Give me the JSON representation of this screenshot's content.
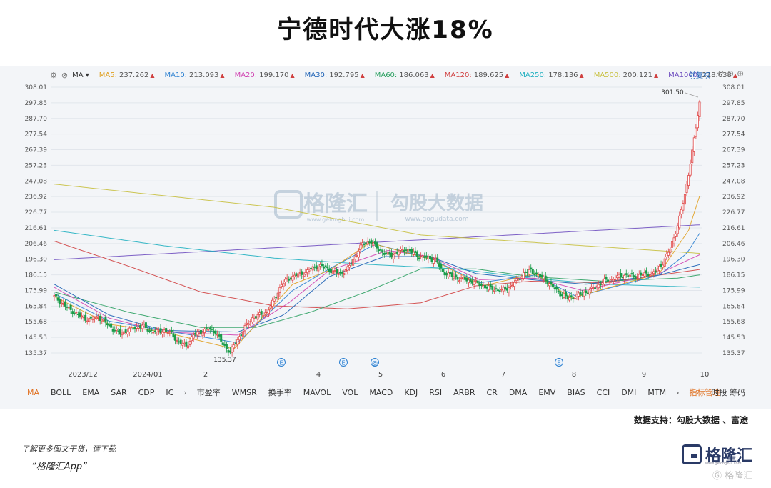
{
  "title": "宁德时代大涨18%",
  "ma_bar": {
    "selector": "MA",
    "items": [
      {
        "label": "MA5:",
        "value": "237.262",
        "color": "#e0a020"
      },
      {
        "label": "MA10:",
        "value": "213.093",
        "color": "#2a7fd0"
      },
      {
        "label": "MA20:",
        "value": "199.170",
        "color": "#d040b0"
      },
      {
        "label": "MA30:",
        "value": "192.795",
        "color": "#1a5fb4"
      },
      {
        "label": "MA60:",
        "value": "186.063",
        "color": "#2aa060"
      },
      {
        "label": "MA120:",
        "value": "189.625",
        "color": "#d04040"
      },
      {
        "label": "MA250:",
        "value": "178.136",
        "color": "#20b0c0"
      },
      {
        "label": "MA500:",
        "value": "200.121",
        "color": "#c8c040"
      },
      {
        "label": "MA1000:",
        "value": "218.638",
        "color": "#7050c0"
      }
    ],
    "fq": "前复权"
  },
  "watermark": {
    "brand": "格隆汇",
    "brand_url": "www.gelonghui.com",
    "partner": "勾股大数据",
    "partner_url": "www.gogudata.com"
  },
  "tabs": [
    "MA",
    "BOLL",
    "EMA",
    "SAR",
    "CDP",
    "IC",
    "市盈率",
    "WMSR",
    "换手率",
    "MAVOL",
    "VOL",
    "MACD",
    "KDJ",
    "RSI",
    "ARBR",
    "CR",
    "DMA",
    "EMV",
    "BIAS",
    "CCI",
    "DMI",
    "MTM",
    "指标管理"
  ],
  "tabs_right": "时段 筹码",
  "credit": "数据支持：勾股大数据 、富途",
  "footer": {
    "line1": "了解更多图文干货，请下载",
    "line2": "“格隆汇App”",
    "logo": "格隆汇",
    "logo_url": "www.gelonghui.com",
    "bottom_mark": "格隆汇"
  },
  "chart_data": {
    "type": "candlestick",
    "y_ticks": [
      308.01,
      297.85,
      287.7,
      277.54,
      267.39,
      257.23,
      247.08,
      236.92,
      226.77,
      216.61,
      206.46,
      196.3,
      186.15,
      175.99,
      165.84,
      155.68,
      145.53,
      135.37
    ],
    "x_labels": [
      "2023/12",
      "2024/01",
      "2",
      "4",
      "5",
      "6",
      "7",
      "8",
      "9",
      "10"
    ],
    "annotations": [
      {
        "text": "301.50",
        "kind": "high"
      },
      {
        "text": "135.37",
        "kind": "low"
      }
    ],
    "event_markers": [
      "E",
      "E",
      "@",
      "E"
    ],
    "close_path": [
      [
        0,
        172
      ],
      [
        4,
        168
      ],
      [
        8,
        164
      ],
      [
        12,
        161
      ],
      [
        16,
        158
      ],
      [
        20,
        157
      ],
      [
        24,
        159
      ],
      [
        28,
        155
      ],
      [
        32,
        151
      ],
      [
        36,
        148
      ],
      [
        40,
        150
      ],
      [
        44,
        152
      ],
      [
        48,
        153
      ],
      [
        52,
        150
      ],
      [
        56,
        149
      ],
      [
        60,
        150
      ],
      [
        64,
        148
      ],
      [
        68,
        142
      ],
      [
        72,
        140
      ],
      [
        76,
        147
      ],
      [
        80,
        149
      ],
      [
        84,
        151
      ],
      [
        88,
        149
      ],
      [
        92,
        141
      ],
      [
        96,
        136
      ],
      [
        100,
        144
      ],
      [
        104,
        152
      ],
      [
        108,
        158
      ],
      [
        112,
        160
      ],
      [
        116,
        162
      ],
      [
        120,
        170
      ],
      [
        124,
        180
      ],
      [
        128,
        184
      ],
      [
        132,
        186
      ],
      [
        136,
        187
      ],
      [
        140,
        190
      ],
      [
        144,
        192
      ],
      [
        148,
        191
      ],
      [
        152,
        188
      ],
      [
        156,
        187
      ],
      [
        160,
        190
      ],
      [
        164,
        198
      ],
      [
        168,
        206
      ],
      [
        172,
        208
      ],
      [
        176,
        204
      ],
      [
        180,
        200
      ],
      [
        184,
        199
      ],
      [
        188,
        201
      ],
      [
        192,
        203
      ],
      [
        196,
        200
      ],
      [
        200,
        198
      ],
      [
        204,
        197
      ],
      [
        208,
        196
      ],
      [
        212,
        188
      ],
      [
        216,
        186
      ],
      [
        220,
        184
      ],
      [
        224,
        183
      ],
      [
        228,
        182
      ],
      [
        232,
        180
      ],
      [
        236,
        178
      ],
      [
        240,
        177
      ],
      [
        244,
        176
      ],
      [
        248,
        178
      ],
      [
        252,
        182
      ],
      [
        256,
        187
      ],
      [
        260,
        189
      ],
      [
        264,
        186
      ],
      [
        268,
        183
      ],
      [
        272,
        178
      ],
      [
        276,
        174
      ],
      [
        280,
        171
      ],
      [
        284,
        172
      ],
      [
        288,
        174
      ],
      [
        292,
        176
      ],
      [
        296,
        179
      ],
      [
        300,
        182
      ],
      [
        304,
        183
      ],
      [
        308,
        185
      ],
      [
        312,
        186
      ],
      [
        316,
        185
      ],
      [
        320,
        186
      ],
      [
        324,
        187
      ],
      [
        328,
        188
      ],
      [
        332,
        194
      ],
      [
        336,
        203
      ],
      [
        340,
        218
      ],
      [
        344,
        238
      ],
      [
        348,
        266
      ],
      [
        352,
        298
      ]
    ],
    "ma_lines": [
      {
        "name": "MA1000",
        "color": "#7050c0",
        "y": [
          [
            0,
            196
          ],
          [
            352,
            218.6
          ]
        ]
      },
      {
        "name": "MA500",
        "color": "#c8c040",
        "y": [
          [
            0,
            245
          ],
          [
            120,
            230
          ],
          [
            200,
            212
          ],
          [
            352,
            200.1
          ]
        ]
      },
      {
        "name": "MA250",
        "color": "#20b0c0",
        "y": [
          [
            0,
            215
          ],
          [
            60,
            205
          ],
          [
            120,
            197
          ],
          [
            170,
            193
          ],
          [
            220,
            190
          ],
          [
            260,
            184
          ],
          [
            300,
            180
          ],
          [
            352,
            178.1
          ]
        ]
      },
      {
        "name": "MA120",
        "color": "#d04040",
        "y": [
          [
            0,
            208
          ],
          [
            40,
            192
          ],
          [
            80,
            175
          ],
          [
            120,
            166
          ],
          [
            160,
            164
          ],
          [
            200,
            168
          ],
          [
            230,
            179
          ],
          [
            260,
            182
          ],
          [
            300,
            181
          ],
          [
            352,
            189.6
          ]
        ]
      },
      {
        "name": "MA60",
        "color": "#2aa060",
        "y": [
          [
            0,
            175
          ],
          [
            40,
            162
          ],
          [
            80,
            152
          ],
          [
            110,
            152
          ],
          [
            140,
            162
          ],
          [
            170,
            175
          ],
          [
            200,
            190
          ],
          [
            230,
            190
          ],
          [
            260,
            185
          ],
          [
            300,
            182
          ],
          [
            340,
            184
          ],
          [
            352,
            186.1
          ]
        ]
      },
      {
        "name": "MA30",
        "color": "#1a5fb4",
        "y": [
          [
            0,
            180
          ],
          [
            30,
            160
          ],
          [
            60,
            150
          ],
          [
            100,
            149
          ],
          [
            125,
            160
          ],
          [
            150,
            185
          ],
          [
            180,
            198
          ],
          [
            205,
            198
          ],
          [
            230,
            187
          ],
          [
            260,
            183
          ],
          [
            290,
            180
          ],
          [
            330,
            186
          ],
          [
            352,
            192.8
          ]
        ]
      },
      {
        "name": "MA20",
        "color": "#d040b0",
        "y": [
          [
            0,
            178
          ],
          [
            30,
            158
          ],
          [
            60,
            149
          ],
          [
            100,
            147
          ],
          [
            128,
            168
          ],
          [
            150,
            189
          ],
          [
            182,
            202
          ],
          [
            205,
            198
          ],
          [
            232,
            183
          ],
          [
            262,
            184
          ],
          [
            288,
            176
          ],
          [
            330,
            187
          ],
          [
            352,
            199.2
          ]
        ]
      },
      {
        "name": "MA10",
        "color": "#2a7fd0",
        "y": [
          [
            0,
            174
          ],
          [
            30,
            156
          ],
          [
            60,
            150
          ],
          [
            100,
            142
          ],
          [
            130,
            176
          ],
          [
            150,
            190
          ],
          [
            175,
            206
          ],
          [
            205,
            197
          ],
          [
            232,
            181
          ],
          [
            262,
            186
          ],
          [
            285,
            172
          ],
          [
            330,
            186
          ],
          [
            345,
            200
          ],
          [
            352,
            213.1
          ]
        ]
      },
      {
        "name": "MA5",
        "color": "#e0a020",
        "y": [
          [
            0,
            172
          ],
          [
            30,
            154
          ],
          [
            60,
            149
          ],
          [
            98,
            138
          ],
          [
            130,
            180
          ],
          [
            150,
            189
          ],
          [
            172,
            207
          ],
          [
            206,
            196
          ],
          [
            234,
            179
          ],
          [
            262,
            187
          ],
          [
            282,
            171
          ],
          [
            330,
            187
          ],
          [
            346,
            215
          ],
          [
            352,
            237.3
          ]
        ]
      }
    ]
  }
}
